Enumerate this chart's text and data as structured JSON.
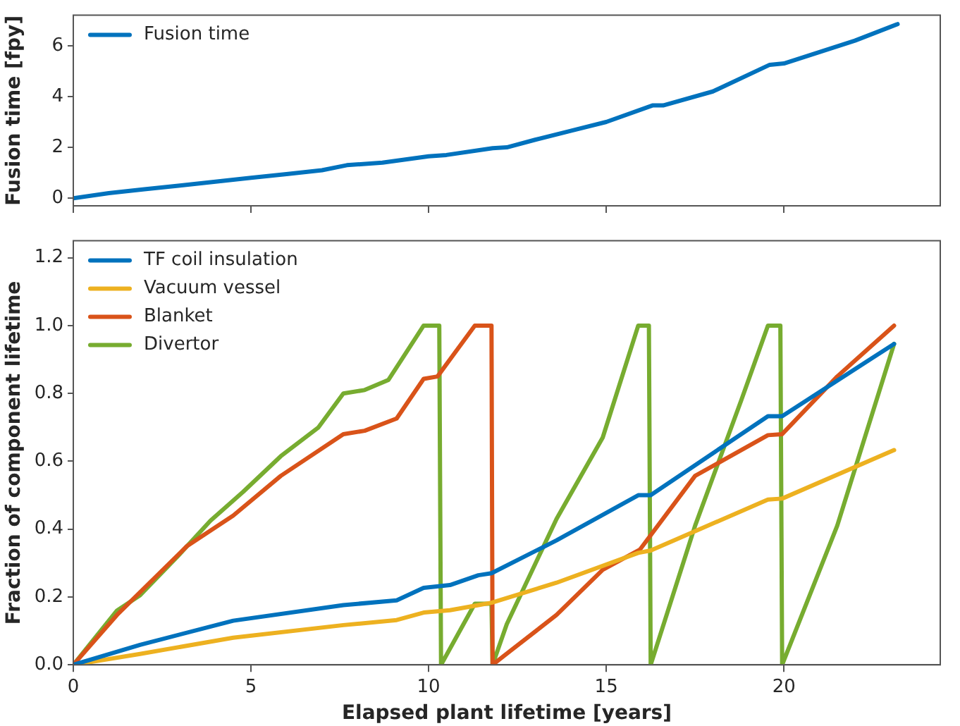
{
  "chart_data": [
    {
      "type": "line",
      "ylabel": "Fusion time [fpy]",
      "xlim": [
        0,
        24.4
      ],
      "xticks": [
        0,
        5,
        10,
        15,
        20
      ],
      "ylim": [
        -0.3,
        7.2
      ],
      "yticks": [
        0,
        2,
        4,
        6
      ],
      "tick_labels": "y",
      "grid": false,
      "legend": "top left",
      "line_style": "solid",
      "marker": "none",
      "series": [
        {
          "name": "Fusion time",
          "color": "#0072bd",
          "x": [
            0,
            1,
            2,
            3,
            4,
            5,
            6,
            7,
            7.7,
            8.7,
            10,
            10.5,
            11.8,
            12.2,
            13,
            14,
            15,
            16.3,
            16.6,
            18,
            19.6,
            20,
            21,
            22,
            23.2
          ],
          "values": [
            0,
            0.2,
            0.35,
            0.5,
            0.65,
            0.8,
            0.95,
            1.1,
            1.3,
            1.4,
            1.65,
            1.7,
            1.97,
            2.0,
            2.3,
            2.65,
            3.0,
            3.65,
            3.65,
            4.2,
            5.25,
            5.3,
            5.75,
            6.2,
            6.85
          ]
        }
      ]
    },
    {
      "type": "line",
      "xlabel": "Elapsed plant lifetime [years]",
      "ylabel": "Fraction of component lifetime",
      "xlim": [
        0,
        24.4
      ],
      "xticks": [
        0,
        5,
        10,
        15,
        20
      ],
      "ylim": [
        0,
        1.25
      ],
      "yticks": [
        {
          "value": 0,
          "label": "0.0"
        },
        {
          "value": 0.2,
          "label": "0.2"
        },
        {
          "value": 0.4,
          "label": "0.4"
        },
        {
          "value": 0.6,
          "label": "0.6"
        },
        {
          "value": 0.8,
          "label": "0.8"
        },
        {
          "value": 1,
          "label": "1.0"
        },
        {
          "value": 1.2,
          "label": "1.2"
        }
      ],
      "grid": false,
      "legend": "top left",
      "line_style": "solid",
      "marker": "none",
      "series": [
        {
          "name": "TF coil insulation",
          "color": "#0072bd",
          "x": [
            0,
            1.88,
            4.5,
            7.6,
            9.1,
            9.86,
            10.6,
            11.4,
            11.77,
            13.6,
            15.9,
            16.25,
            19.55,
            19.95,
            23.1
          ],
          "values": [
            0,
            0.059,
            0.13,
            0.176,
            0.19,
            0.227,
            0.235,
            0.264,
            0.27,
            0.367,
            0.5,
            0.5,
            0.733,
            0.733,
            0.946
          ]
        },
        {
          "name": "Vacuum vessel",
          "color": "#edb120",
          "x": [
            0,
            1.88,
            4.5,
            7.6,
            9.1,
            9.86,
            10.6,
            11.4,
            11.77,
            13.6,
            15.9,
            16.25,
            19.55,
            19.95,
            23.1
          ],
          "values": [
            0,
            0.032,
            0.08,
            0.117,
            0.132,
            0.154,
            0.161,
            0.176,
            0.183,
            0.242,
            0.33,
            0.337,
            0.487,
            0.49,
            0.633
          ]
        },
        {
          "name": "Blanket",
          "color": "#d95319",
          "x": [
            0,
            1.23,
            3.2,
            4.5,
            5.84,
            7.6,
            8.2,
            9.1,
            9.86,
            10.25,
            11.3,
            11.77,
            11.8,
            12.25,
            13.6,
            14.9,
            15.95,
            17.5,
            19.55,
            19.95,
            21.5,
            23.1
          ],
          "values": [
            0,
            0.147,
            0.35,
            0.44,
            0.557,
            0.68,
            0.69,
            0.726,
            0.843,
            0.85,
            1.0,
            1.0,
            0,
            0.037,
            0.147,
            0.28,
            0.34,
            0.557,
            0.677,
            0.68,
            0.85,
            1.0
          ]
        },
        {
          "name": "Divertor",
          "color": "#77ac30",
          "x": [
            0,
            1.23,
            1.88,
            2.94,
            3.86,
            4.78,
            5.84,
            6.9,
            7.6,
            8.2,
            8.87,
            9.86,
            10.3,
            10.35,
            11.3,
            11.77,
            11.8,
            12.2,
            13.6,
            14.9,
            15.9,
            16.2,
            16.25,
            17.5,
            18.8,
            19.55,
            19.9,
            19.95,
            21.5,
            23.1
          ],
          "values": [
            0,
            0.16,
            0.205,
            0.32,
            0.425,
            0.51,
            0.615,
            0.7,
            0.8,
            0.81,
            0.84,
            1.0,
            1.0,
            0,
            0.18,
            0.18,
            0,
            0.12,
            0.43,
            0.67,
            1.0,
            1.0,
            0,
            0.41,
            0.78,
            1.0,
            1.0,
            0,
            0.41,
            0.946
          ]
        }
      ]
    }
  ]
}
